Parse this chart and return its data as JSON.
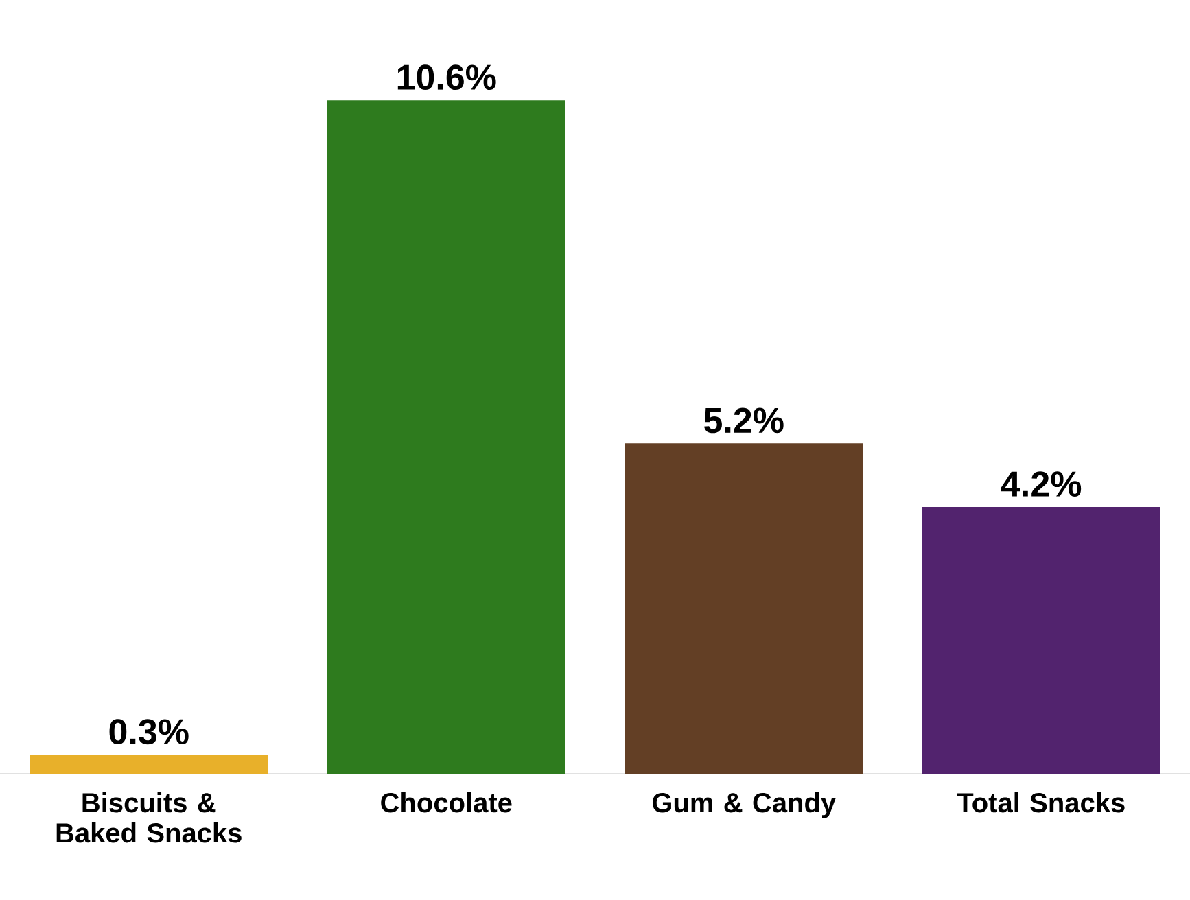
{
  "chart_data": {
    "type": "bar",
    "categories": [
      "Biscuits & Baked Snacks",
      "Chocolate",
      "Gum & Candy",
      "Total Snacks"
    ],
    "values": [
      0.3,
      10.6,
      5.2,
      4.2
    ],
    "value_labels": [
      "0.3%",
      "10.6%",
      "5.2%",
      "4.2%"
    ],
    "colors": [
      "#e8b02a",
      "#2e7b1e",
      "#633f25",
      "#52236e"
    ]
  }
}
